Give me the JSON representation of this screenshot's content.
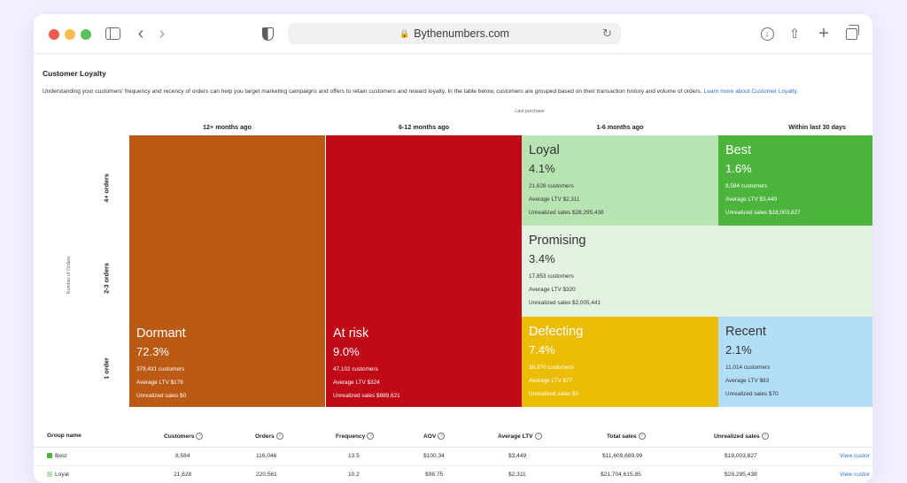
{
  "browser": {
    "url": "Bythenumbers.com",
    "icons": [
      "sidebar-icon",
      "back-icon",
      "forward-icon",
      "shield-icon",
      "lock-icon",
      "reload-icon",
      "download-icon",
      "share-icon",
      "plus-icon",
      "tabs-icon"
    ]
  },
  "page": {
    "title": "Customer Loyalty",
    "description": "Understanding your customers' frequency and recency of orders can help you target marketing campaigns and offers to retain customers and reward loyalty. In the table below, customers are grouped based on their transaction history and volume of orders.",
    "learn_more": "Learn more about Customer Loyalty."
  },
  "grid": {
    "top_label": "Last purchase",
    "columns": [
      "12+ months ago",
      "6-12 months ago",
      "1-6 months ago",
      "Within last 30 days"
    ],
    "y_label": "Number of Orders",
    "rows": [
      "4+ orders",
      "2-3 orders",
      "1 order"
    ],
    "segments": {
      "dormant": {
        "name": "Dormant",
        "pct": "72.3%",
        "customers": "379,431 customers",
        "ltv": "Average LTV $179",
        "unrealized": "Unrealized sales $0",
        "color": "#bb5a14"
      },
      "at_risk": {
        "name": "At risk",
        "pct": "9.0%",
        "customers": "47,102 customers",
        "ltv": "Average LTV $324",
        "unrealized": "Unrealized sales $889,621",
        "color": "#c00a17"
      },
      "loyal": {
        "name": "Loyal",
        "pct": "4.1%",
        "customers": "21,628 customers",
        "ltv": "Average LTV $2,311",
        "unrealized": "Unrealized sales $28,295,438",
        "color": "#b8e4b4"
      },
      "best": {
        "name": "Best",
        "pct": "1.6%",
        "customers": "8,584 customers",
        "ltv": "Average LTV $3,449",
        "unrealized": "Unrealized sales $18,003,827",
        "color": "#4cb43c"
      },
      "promising": {
        "name": "Promising",
        "pct": "3.4%",
        "customers": "17,853 customers",
        "ltv": "Average LTV $320",
        "unrealized": "Unrealized sales $2,005,441",
        "color": "#e3f2e1"
      },
      "defecting": {
        "name": "Defecting",
        "pct": "7.4%",
        "customers": "38,970 customers",
        "ltv": "Average LTV $77",
        "unrealized": "Unrealized sales $0",
        "color": "#ebbd07"
      },
      "recent": {
        "name": "Recent",
        "pct": "2.1%",
        "customers": "11,014 customers",
        "ltv": "Average LTV $83",
        "unrealized": "Unrealized sales $70",
        "color": "#b3def7"
      }
    }
  },
  "table": {
    "headers": [
      "Group name",
      "Customers",
      "Orders",
      "Frequency",
      "AOV",
      "Average LTV",
      "Total sales",
      "Unrealized sales"
    ],
    "rows": [
      {
        "group": "Best",
        "color": "#4cb43c",
        "customers": "8,584",
        "orders": "116,046",
        "frequency": "13.5",
        "aov": "$100.34",
        "ltv": "$3,449",
        "total_sales": "$11,609,689.99",
        "unrealized": "$18,003,827",
        "action": "View custor"
      },
      {
        "group": "Loyal",
        "color": "#b8e4b4",
        "customers": "21,628",
        "orders": "220,561",
        "frequency": "10.2",
        "aov": "$98.75",
        "ltv": "$2,311",
        "total_sales": "$21,704,615.85",
        "unrealized": "$28,295,438",
        "action": "View custor"
      }
    ]
  }
}
